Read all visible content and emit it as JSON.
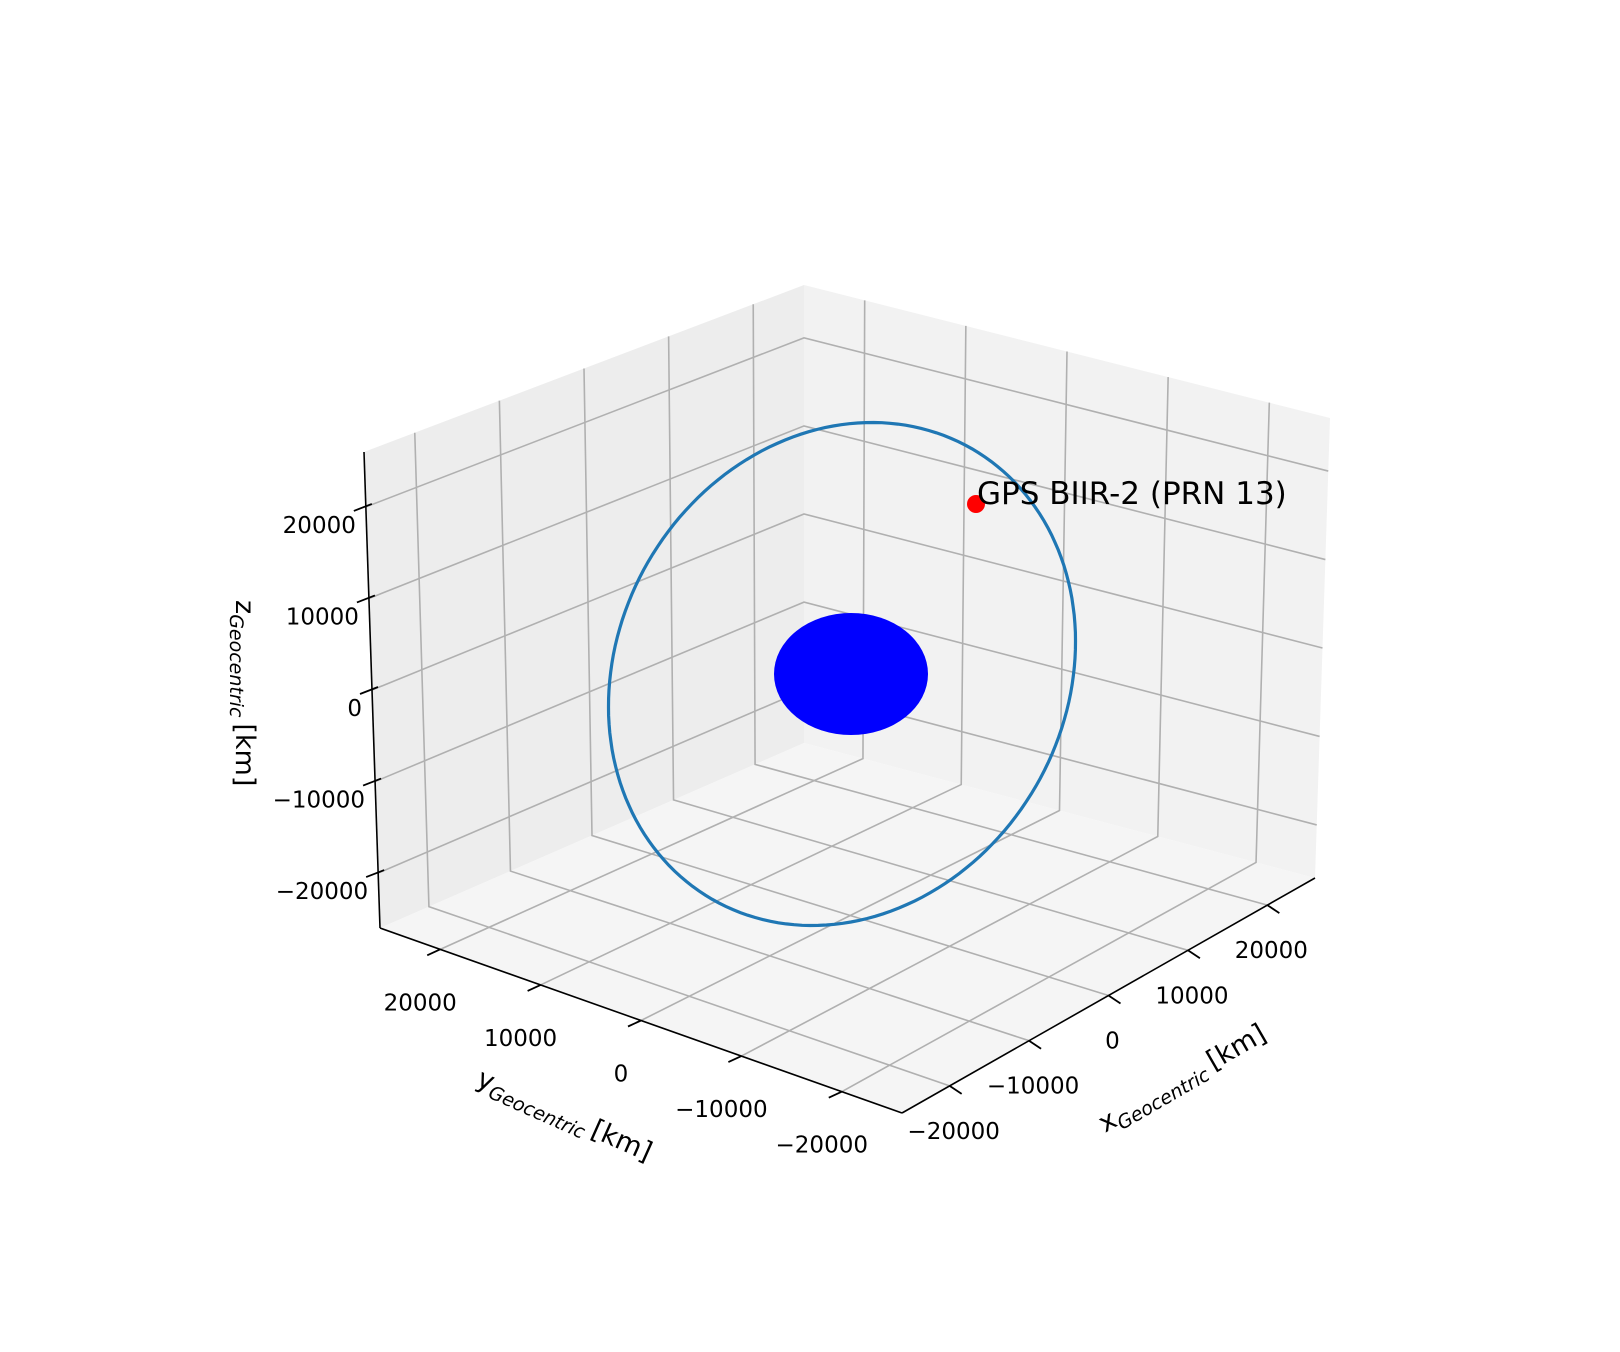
{
  "chart_data": {
    "type": "3d-line",
    "title": "",
    "xlabel": {
      "main": "x",
      "sub": "Geocentric",
      "unit": "[km]"
    },
    "ylabel": {
      "main": "y",
      "sub": "Geocentric",
      "unit": "[km]"
    },
    "zlabel": {
      "main": "z",
      "sub": "Geocentric",
      "unit": "[km]"
    },
    "xlim": [
      -26000,
      26000
    ],
    "ylim": [
      -26000,
      26000
    ],
    "zlim": [
      -26000,
      26000
    ],
    "x_ticks": [
      {
        "value": 20000,
        "label": "20000"
      },
      {
        "value": 10000,
        "label": "10000"
      },
      {
        "value": 0,
        "label": "0"
      },
      {
        "value": -10000,
        "label": "−10000"
      },
      {
        "value": -20000,
        "label": "−20000"
      }
    ],
    "y_ticks": [
      {
        "value": 20000,
        "label": "20000"
      },
      {
        "value": 10000,
        "label": "10000"
      },
      {
        "value": 0,
        "label": "0"
      },
      {
        "value": -10000,
        "label": "−10000"
      },
      {
        "value": -20000,
        "label": "−20000"
      }
    ],
    "z_ticks": [
      {
        "value": 20000,
        "label": "20000"
      },
      {
        "value": 10000,
        "label": "10000"
      },
      {
        "value": 0,
        "label": "0"
      },
      {
        "value": -10000,
        "label": "−10000"
      },
      {
        "value": -20000,
        "label": "−20000"
      }
    ],
    "grid": true,
    "orbit": {
      "radius_km": 26560,
      "color": "#1f77b4"
    },
    "earth": {
      "radius_km": 6371,
      "color": "#0000ff"
    },
    "satellite": {
      "label": "GPS BIIR-2  (PRN 13)",
      "color": "#ff0000"
    }
  }
}
